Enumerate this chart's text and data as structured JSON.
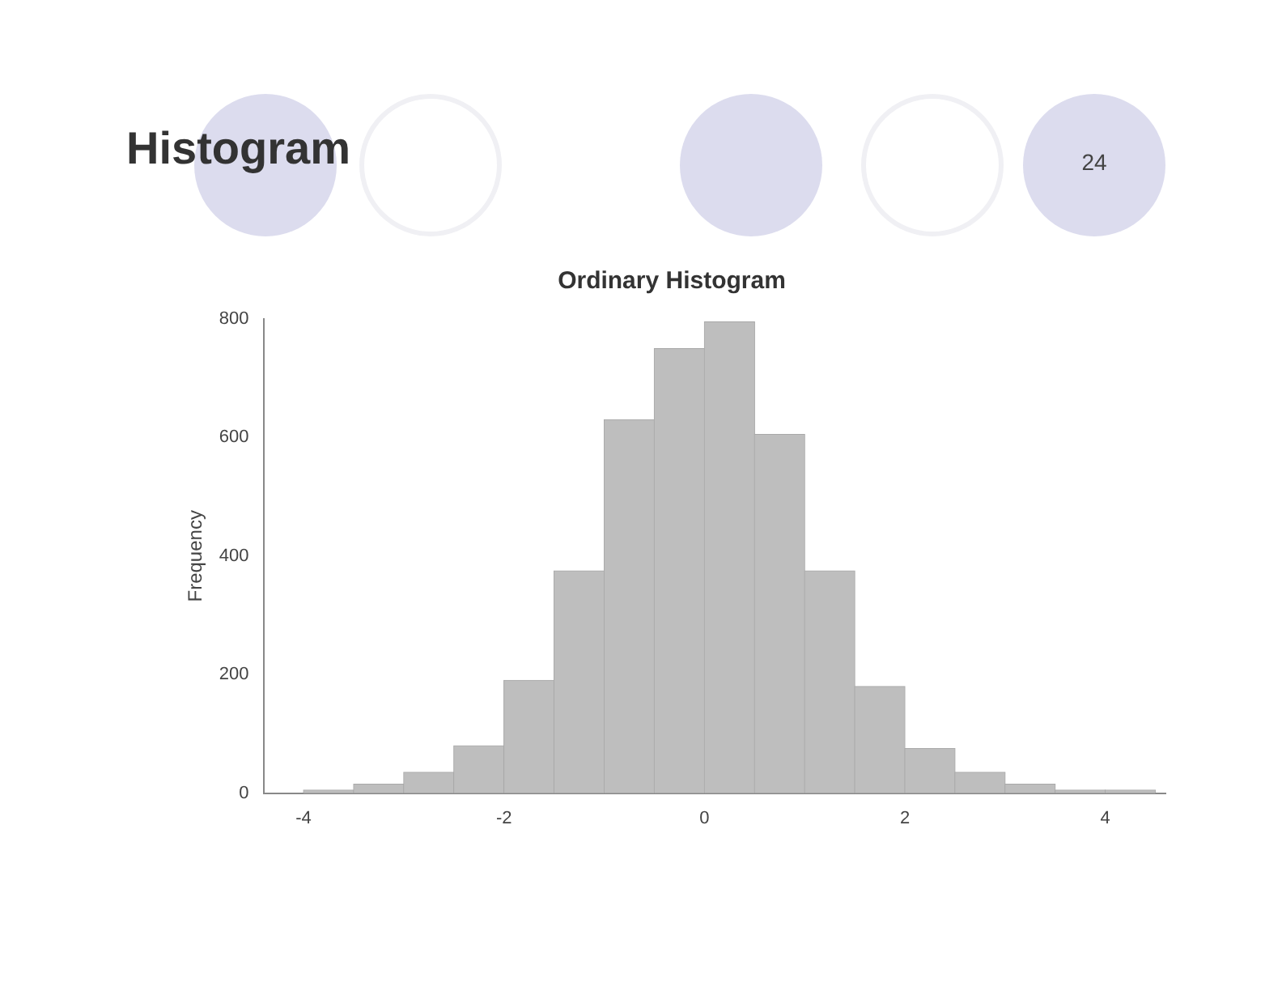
{
  "chart_data": {
    "type": "histogram",
    "title": "Histogram",
    "subtitle": "Ordinary Histogram",
    "ylabel": "Frequency",
    "bins": [
      -4,
      -3.5,
      -3,
      -2.5,
      -2,
      -1.5,
      -1,
      -0.5,
      0,
      0.5,
      1,
      1.5,
      2,
      2.5,
      3,
      3.5,
      4,
      4.5
    ],
    "values": [
      5,
      15,
      35,
      80,
      190,
      375,
      630,
      750,
      795,
      605,
      375,
      180,
      75,
      35,
      15,
      5,
      5
    ],
    "color": "#bebebe",
    "xlim": [
      -4.4,
      4.6
    ],
    "xticks": [
      -4,
      -2,
      0,
      2,
      4
    ],
    "ylim": [
      0,
      800
    ],
    "yticks": [
      0,
      200,
      400,
      600,
      800
    ],
    "grid": false,
    "legend": false,
    "annotations": [
      "24"
    ]
  }
}
